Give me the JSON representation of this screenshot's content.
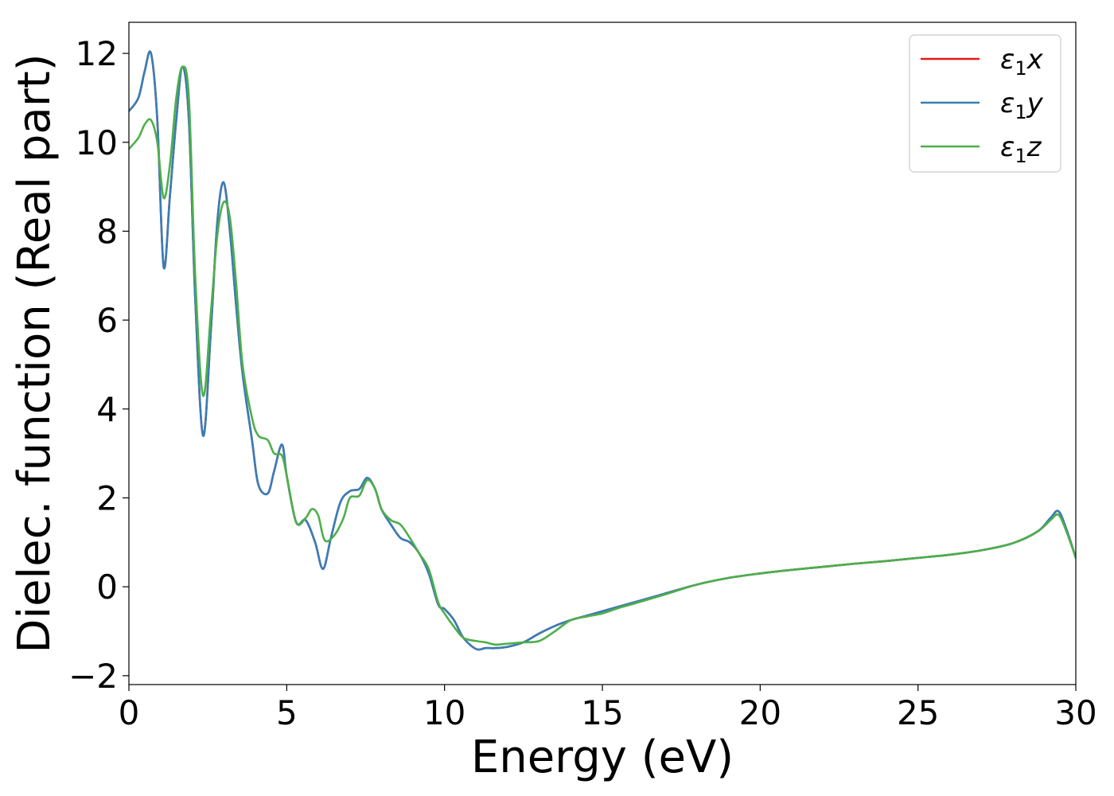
{
  "chart_data": {
    "type": "line",
    "xlabel": "Energy (eV)",
    "ylabel": "Dielec. function (Real part)",
    "xlim": [
      0,
      30
    ],
    "ylim": [
      -2.2,
      12.7
    ],
    "xticks": [
      0,
      5,
      10,
      15,
      20,
      25,
      30
    ],
    "xtick_labels": [
      "0",
      "5",
      "10",
      "15",
      "20",
      "25",
      "30"
    ],
    "yticks": [
      -2,
      0,
      2,
      4,
      6,
      8,
      10,
      12
    ],
    "ytick_labels": [
      "−2",
      "0",
      "2",
      "4",
      "6",
      "8",
      "10",
      "12"
    ],
    "grid": false,
    "legend_position": "top-right",
    "series": [
      {
        "name": "ε1x",
        "legend_main": "ε",
        "legend_sub": "1",
        "legend_axis": "x",
        "color": "#e41a1c",
        "x": [
          0.0,
          0.3,
          0.5,
          0.7,
          0.9,
          1.1,
          1.3,
          1.5,
          1.7,
          1.9,
          2.1,
          2.35,
          2.6,
          2.8,
          3.0,
          3.2,
          3.4,
          3.6,
          3.9,
          4.1,
          4.4,
          4.6,
          4.85,
          5.0,
          5.3,
          5.6,
          5.9,
          6.15,
          6.4,
          6.7,
          7.0,
          7.3,
          7.55,
          7.8,
          8.0,
          8.3,
          8.6,
          8.9,
          9.2,
          9.5,
          9.8,
          10.0,
          10.3,
          10.6,
          11.0,
          11.3,
          11.6,
          12.0,
          12.5,
          13.0,
          13.5,
          14.0,
          14.5,
          15.0,
          15.5,
          16.0,
          17.0,
          18.0,
          19.0,
          20.0,
          21.0,
          22.0,
          23.0,
          24.0,
          25.0,
          26.0,
          27.0,
          28.0,
          28.8,
          29.2,
          29.45,
          29.7,
          30.0
        ],
        "y": [
          10.7,
          11.0,
          11.6,
          12.0,
          10.5,
          7.2,
          8.8,
          10.5,
          11.7,
          10.5,
          6.5,
          3.4,
          5.8,
          8.2,
          9.1,
          8.0,
          6.3,
          4.8,
          3.3,
          2.3,
          2.1,
          2.6,
          3.2,
          2.5,
          1.45,
          1.5,
          1.0,
          0.4,
          1.1,
          1.9,
          2.15,
          2.2,
          2.45,
          2.2,
          1.75,
          1.4,
          1.1,
          1.0,
          0.75,
          0.3,
          -0.4,
          -0.5,
          -0.75,
          -1.15,
          -1.4,
          -1.38,
          -1.38,
          -1.35,
          -1.25,
          -1.05,
          -0.88,
          -0.75,
          -0.65,
          -0.55,
          -0.45,
          -0.35,
          -0.15,
          0.05,
          0.2,
          0.3,
          0.38,
          0.45,
          0.52,
          0.58,
          0.65,
          0.72,
          0.82,
          0.98,
          1.25,
          1.55,
          1.7,
          1.3,
          0.65
        ]
      },
      {
        "name": "ε1y",
        "legend_main": "ε",
        "legend_sub": "1",
        "legend_axis": "y",
        "color": "#377eb8",
        "x": [
          0.0,
          0.3,
          0.5,
          0.7,
          0.9,
          1.1,
          1.3,
          1.5,
          1.7,
          1.9,
          2.1,
          2.35,
          2.6,
          2.8,
          3.0,
          3.2,
          3.4,
          3.6,
          3.9,
          4.1,
          4.4,
          4.6,
          4.85,
          5.0,
          5.3,
          5.6,
          5.9,
          6.15,
          6.4,
          6.7,
          7.0,
          7.3,
          7.55,
          7.8,
          8.0,
          8.3,
          8.6,
          8.9,
          9.2,
          9.5,
          9.8,
          10.0,
          10.3,
          10.6,
          11.0,
          11.3,
          11.6,
          12.0,
          12.5,
          13.0,
          13.5,
          14.0,
          14.5,
          15.0,
          15.5,
          16.0,
          17.0,
          18.0,
          19.0,
          20.0,
          21.0,
          22.0,
          23.0,
          24.0,
          25.0,
          26.0,
          27.0,
          28.0,
          28.8,
          29.2,
          29.45,
          29.7,
          30.0
        ],
        "y": [
          10.7,
          11.0,
          11.6,
          12.0,
          10.5,
          7.2,
          8.8,
          10.5,
          11.7,
          10.5,
          6.5,
          3.4,
          5.8,
          8.2,
          9.1,
          8.0,
          6.3,
          4.8,
          3.3,
          2.3,
          2.1,
          2.6,
          3.2,
          2.5,
          1.45,
          1.5,
          1.0,
          0.4,
          1.1,
          1.9,
          2.15,
          2.2,
          2.45,
          2.2,
          1.75,
          1.4,
          1.1,
          1.0,
          0.75,
          0.3,
          -0.4,
          -0.5,
          -0.75,
          -1.15,
          -1.4,
          -1.38,
          -1.38,
          -1.35,
          -1.25,
          -1.05,
          -0.88,
          -0.75,
          -0.65,
          -0.55,
          -0.45,
          -0.35,
          -0.15,
          0.05,
          0.2,
          0.3,
          0.38,
          0.45,
          0.52,
          0.58,
          0.65,
          0.72,
          0.82,
          0.98,
          1.25,
          1.55,
          1.7,
          1.3,
          0.65
        ]
      },
      {
        "name": "ε1z",
        "legend_main": "ε",
        "legend_sub": "1",
        "legend_axis": "z",
        "color": "#4daf4a",
        "x": [
          0.0,
          0.3,
          0.5,
          0.7,
          0.9,
          1.1,
          1.3,
          1.5,
          1.7,
          1.9,
          2.1,
          2.35,
          2.6,
          2.8,
          3.0,
          3.2,
          3.4,
          3.6,
          3.9,
          4.1,
          4.4,
          4.6,
          4.85,
          5.0,
          5.3,
          5.6,
          5.8,
          6.0,
          6.2,
          6.5,
          6.8,
          7.0,
          7.3,
          7.55,
          7.8,
          8.0,
          8.3,
          8.6,
          8.9,
          9.2,
          9.5,
          9.8,
          10.0,
          10.3,
          10.6,
          11.0,
          11.3,
          11.6,
          12.0,
          12.5,
          13.0,
          13.5,
          14.0,
          14.5,
          15.0,
          15.5,
          16.0,
          17.0,
          18.0,
          19.0,
          20.0,
          21.0,
          22.0,
          23.0,
          24.0,
          25.0,
          26.0,
          27.0,
          28.0,
          28.8,
          29.2,
          29.45,
          29.7,
          30.0
        ],
        "y": [
          9.85,
          10.1,
          10.4,
          10.5,
          10.0,
          8.75,
          9.5,
          11.0,
          11.7,
          11.0,
          7.0,
          4.3,
          6.2,
          7.9,
          8.65,
          8.3,
          6.8,
          5.0,
          3.8,
          3.4,
          3.3,
          3.0,
          2.95,
          2.5,
          1.45,
          1.55,
          1.75,
          1.6,
          1.05,
          1.15,
          1.55,
          2.0,
          2.05,
          2.4,
          2.2,
          1.75,
          1.5,
          1.4,
          1.1,
          0.75,
          0.4,
          -0.35,
          -0.6,
          -0.9,
          -1.15,
          -1.22,
          -1.25,
          -1.3,
          -1.28,
          -1.25,
          -1.22,
          -1.0,
          -0.75,
          -0.67,
          -0.6,
          -0.48,
          -0.38,
          -0.17,
          0.05,
          0.2,
          0.3,
          0.38,
          0.45,
          0.52,
          0.58,
          0.65,
          0.72,
          0.82,
          0.98,
          1.25,
          1.5,
          1.62,
          1.25,
          0.65
        ]
      }
    ]
  }
}
